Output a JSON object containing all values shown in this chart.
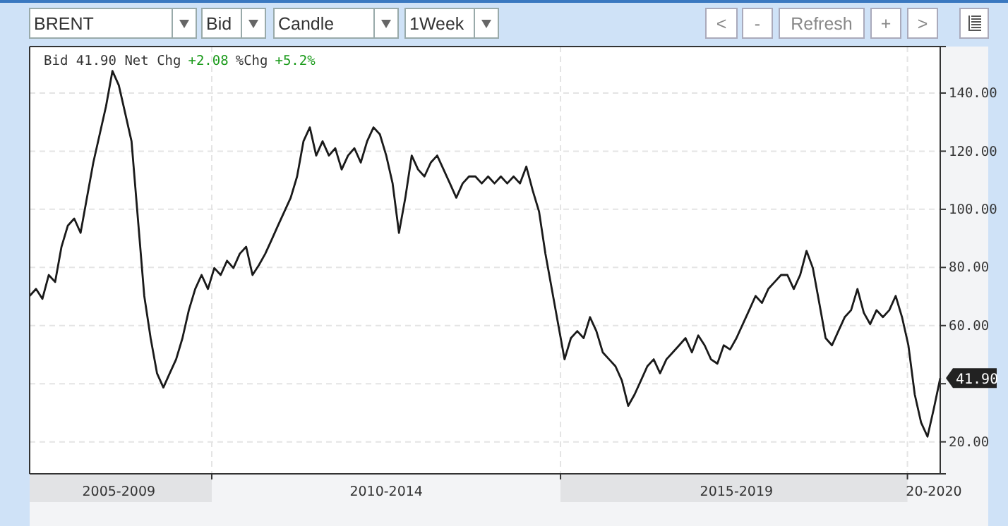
{
  "chart_data": {
    "type": "line",
    "annotations": [
      "BRENT",
      "Bid",
      "Candle",
      "1Week",
      "<",
      "-",
      "Refresh",
      "+",
      ">",
      "Bid 41.90 Net Chg",
      "+2.08",
      "%Chg",
      "+5.2%",
      "41.90"
    ],
    "categories": [
      null,
      null,
      null,
      null,
      null,
      null,
      null,
      null,
      null,
      null,
      null,
      null,
      null,
      null,
      "2005-2009",
      null,
      null,
      null,
      null,
      null,
      null,
      null,
      null,
      null,
      null,
      null,
      null,
      null,
      null,
      null,
      null,
      null,
      null,
      null,
      null,
      null,
      null,
      null,
      null,
      null,
      null,
      null,
      null,
      null,
      null,
      null,
      null,
      null,
      null,
      null,
      null,
      null,
      null,
      null,
      null,
      null,
      "2010-2014",
      null,
      null,
      null,
      null,
      null,
      null,
      null,
      null,
      null,
      null,
      null,
      null,
      null,
      null,
      null,
      null,
      null,
      null,
      null,
      null,
      null,
      null,
      null,
      null,
      null,
      null,
      null,
      null,
      null,
      null,
      null,
      null,
      null,
      null,
      null,
      null,
      null,
      null,
      null,
      null,
      null,
      null,
      null,
      null,
      null,
      null,
      null,
      null,
      null,
      null,
      null,
      null,
      null,
      null,
      "2015-2019",
      null,
      null,
      null,
      null,
      null,
      null,
      null,
      null,
      null,
      null,
      null,
      null,
      null,
      null,
      null,
      null,
      null,
      null,
      null,
      null,
      null,
      null,
      null,
      null,
      null,
      null,
      null,
      null,
      null,
      null,
      "20-2020",
      null
    ],
    "series": [
      {
        "color": "#1a1a1a",
        "values": [
          70.2,
          72.6,
          69.2,
          77.4,
          75.0,
          87.1,
          94.4,
          96.8,
          91.9,
          104.0,
          116.1,
          125.8,
          135.5,
          147.6,
          142.7,
          133.1,
          123.4,
          96.8,
          70.2,
          55.7,
          43.6,
          38.7,
          43.6,
          48.4,
          55.7,
          65.3,
          72.6,
          77.4,
          72.6,
          79.8,
          77.4,
          82.3,
          79.8,
          84.7,
          87.1,
          77.4,
          80.8,
          84.7,
          89.5,
          94.4,
          99.2,
          104.0,
          111.3,
          123.4,
          128.2,
          118.5,
          123.4,
          118.5,
          121.0,
          113.7,
          118.5,
          121.0,
          116.1,
          123.4,
          128.2,
          125.8,
          118.5,
          108.9,
          91.9,
          104.0,
          118.5,
          113.7,
          111.3,
          116.1,
          118.5,
          113.7,
          108.9,
          104.0,
          108.9,
          111.3,
          111.3,
          108.9,
          111.3,
          108.9,
          111.3,
          108.9,
          111.3,
          108.9,
          114.7,
          106.5,
          99.2,
          84.7,
          72.6,
          60.5,
          48.4,
          55.7,
          58.1,
          55.7,
          62.9,
          58.1,
          50.8,
          48.4,
          46.0,
          41.1,
          32.4,
          36.3,
          41.1,
          46.0,
          48.4,
          43.6,
          48.4,
          50.8,
          53.2,
          55.7,
          50.8,
          56.6,
          53.2,
          48.4,
          46.9,
          53.2,
          51.8,
          55.7,
          60.5,
          65.3,
          70.2,
          67.8,
          72.6,
          75.0,
          77.4,
          77.4,
          72.6,
          77.4,
          85.7,
          79.8,
          67.8,
          55.7,
          53.2,
          58.1,
          62.9,
          65.3,
          72.6,
          64.4,
          60.5,
          65.3,
          62.9,
          65.3,
          70.2,
          62.9,
          53.2,
          36.3,
          26.6,
          21.8,
          31.5,
          41.9
        ]
      }
    ],
    "ylim": [
      9,
      156
    ],
    "yticks": [
      {
        "value": 20,
        "label": "20.00"
      },
      {
        "value": 40,
        "label": null
      },
      {
        "value": 60,
        "label": "60.00"
      },
      {
        "value": 80,
        "label": "80.00"
      },
      {
        "value": 100,
        "label": "100.00"
      },
      {
        "value": 120,
        "label": "120.00"
      },
      {
        "value": 140,
        "label": "140.00"
      }
    ],
    "grid": true,
    "line_style": "solid",
    "marker": "none"
  }
}
